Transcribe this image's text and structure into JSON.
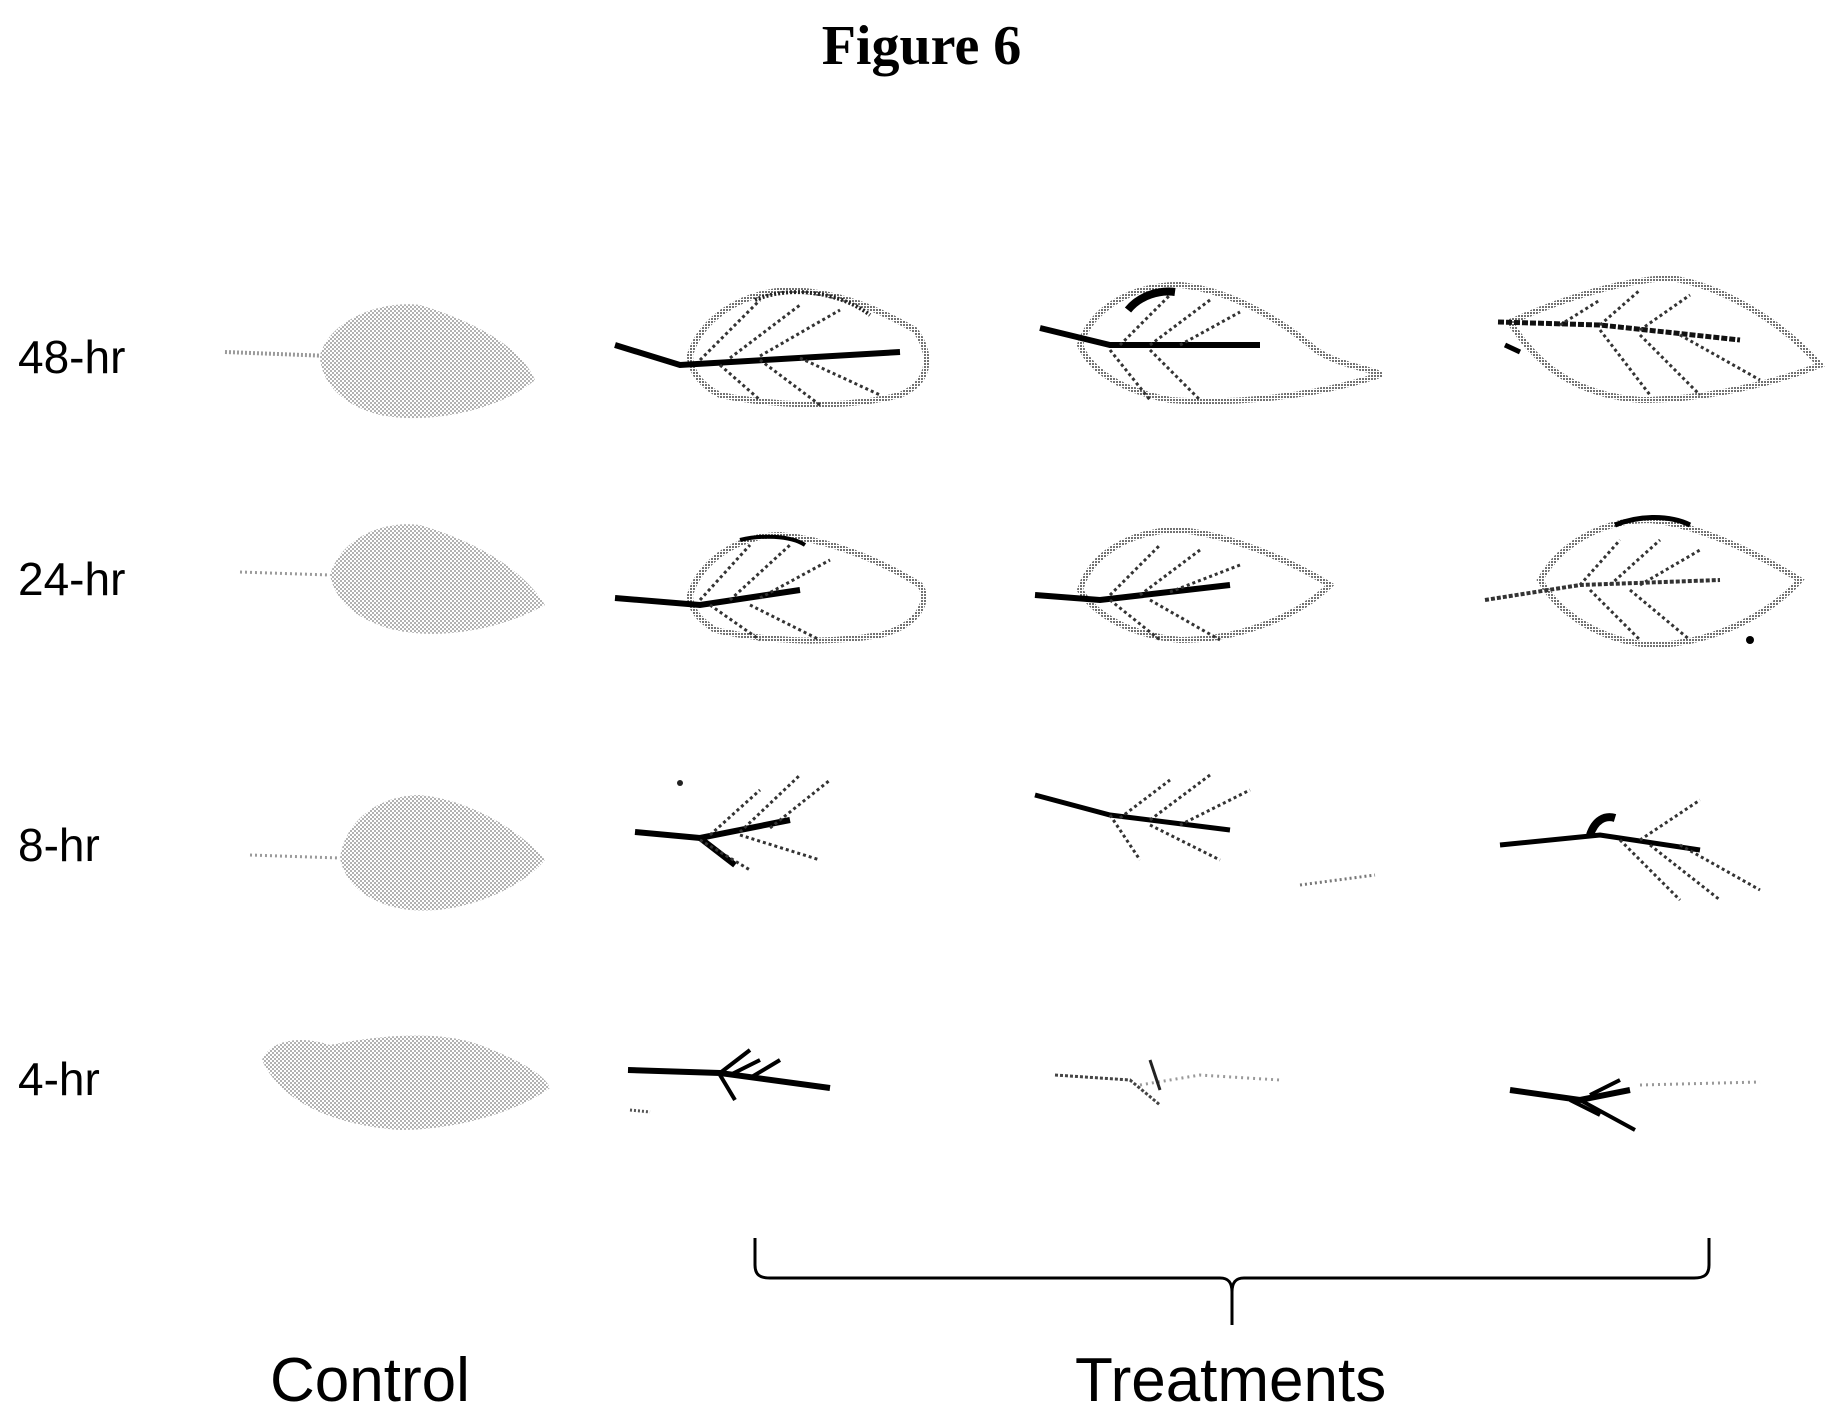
{
  "figure": {
    "title": "Figure 6"
  },
  "rows": [
    {
      "label": "48-hr"
    },
    {
      "label": "24-hr"
    },
    {
      "label": "8-hr"
    },
    {
      "label": "4-hr"
    }
  ],
  "columns": {
    "control_label": "Control",
    "treatments_label": "Treatments",
    "treatment_count": 3
  },
  "colors": {
    "ink": "#000000",
    "control_fill": "#bdbdbd",
    "background": "#ffffff"
  }
}
